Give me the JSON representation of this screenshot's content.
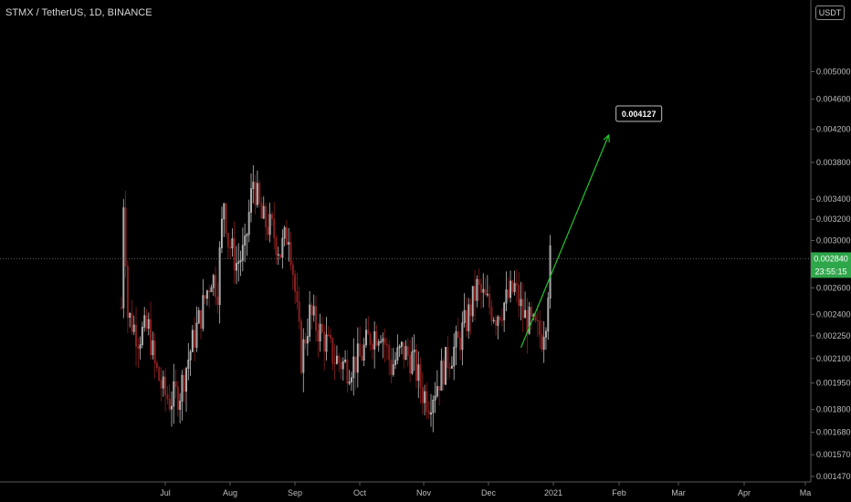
{
  "header": {
    "symbol_title": "STMX / TetherUS, 1D, BINANCE",
    "currency": "USDT"
  },
  "colors": {
    "background": "#000000",
    "up": "#bdbdbd",
    "down": "#8a1f1f",
    "price_tag": "#2ea64a",
    "arrow": "#22c42e",
    "grid_axis": "#5a5a5a"
  },
  "chart_data": {
    "type": "candlestick",
    "price_scale": "log",
    "ylim": [
      0.00147,
      0.0055
    ],
    "x_ticks": [
      "Jul",
      "Aug",
      "Sep",
      "Oct",
      "Nov",
      "Dec",
      "2021",
      "Feb",
      "Mar",
      "Apr",
      "Ma"
    ],
    "y_ticks": [
      0.005,
      0.0046,
      0.0042,
      0.0038,
      0.0034,
      0.0032,
      0.003,
      0.0028,
      0.0026,
      0.0024,
      0.00225,
      0.0021,
      0.00195,
      0.0018,
      0.00168,
      0.00157,
      0.00147
    ],
    "y_tick_labels": [
      "0.005000",
      "0.004600",
      "0.004200",
      "0.003800",
      "0.003400",
      "0.003200",
      "0.003000",
      "0.002800",
      "0.002600",
      "0.002400",
      "0.002250",
      "0.002100",
      "0.001950",
      "0.001800",
      "0.001680",
      "0.001570",
      "0.001470"
    ],
    "x_range": [
      "2020-06-12",
      "2021-05-05"
    ],
    "last_price": 0.00284,
    "last_price_label": "0.002840",
    "countdown": "23:55:15",
    "annotation": {
      "label": "0.004127",
      "from": {
        "date": "2020-12-20",
        "price": 0.00217
      },
      "to": {
        "date": "2021-01-31",
        "price": 0.004127
      }
    },
    "anchors": [
      [
        "2020-06-12",
        0.00245
      ],
      [
        "2020-06-13",
        0.0034
      ],
      [
        "2020-06-15",
        0.0024
      ],
      [
        "2020-06-20",
        0.00225
      ],
      [
        "2020-06-25",
        0.0023
      ],
      [
        "2020-06-28",
        0.00205
      ],
      [
        "2020-07-02",
        0.0019
      ],
      [
        "2020-07-05",
        0.00185
      ],
      [
        "2020-07-10",
        0.0019
      ],
      [
        "2020-07-15",
        0.00215
      ],
      [
        "2020-07-20",
        0.0024
      ],
      [
        "2020-07-25",
        0.0027
      ],
      [
        "2020-07-28",
        0.0026
      ],
      [
        "2020-07-31",
        0.0034
      ],
      [
        "2020-08-02",
        0.003
      ],
      [
        "2020-08-06",
        0.0028
      ],
      [
        "2020-08-10",
        0.0029
      ],
      [
        "2020-08-14",
        0.0036
      ],
      [
        "2020-08-18",
        0.0032
      ],
      [
        "2020-08-23",
        0.0031
      ],
      [
        "2020-08-27",
        0.0029
      ],
      [
        "2020-08-31",
        0.0031
      ],
      [
        "2020-09-04",
        0.0024
      ],
      [
        "2020-09-06",
        0.0021
      ],
      [
        "2020-09-10",
        0.0024
      ],
      [
        "2020-09-14",
        0.0023
      ],
      [
        "2020-09-18",
        0.0022
      ],
      [
        "2020-09-22",
        0.0021
      ],
      [
        "2020-09-28",
        0.00205
      ],
      [
        "2020-10-04",
        0.0021
      ],
      [
        "2020-10-09",
        0.00225
      ],
      [
        "2020-10-14",
        0.0023
      ],
      [
        "2020-10-19",
        0.00205
      ],
      [
        "2020-10-24",
        0.00215
      ],
      [
        "2020-10-29",
        0.0021
      ],
      [
        "2020-11-03",
        0.0019
      ],
      [
        "2020-11-06",
        0.00185
      ],
      [
        "2020-11-10",
        0.00195
      ],
      [
        "2020-11-15",
        0.0021
      ],
      [
        "2020-11-20",
        0.0022
      ],
      [
        "2020-11-25",
        0.0024
      ],
      [
        "2020-11-29",
        0.0026
      ],
      [
        "2020-12-03",
        0.0025
      ],
      [
        "2020-12-08",
        0.0024
      ],
      [
        "2020-12-13",
        0.0025
      ],
      [
        "2020-12-17",
        0.0026
      ],
      [
        "2020-12-21",
        0.0024
      ],
      [
        "2020-12-26",
        0.0023
      ],
      [
        "2020-12-30",
        0.00225
      ],
      [
        "2021-01-01",
        0.0024
      ],
      [
        "2021-01-03",
        0.00284
      ]
    ]
  }
}
